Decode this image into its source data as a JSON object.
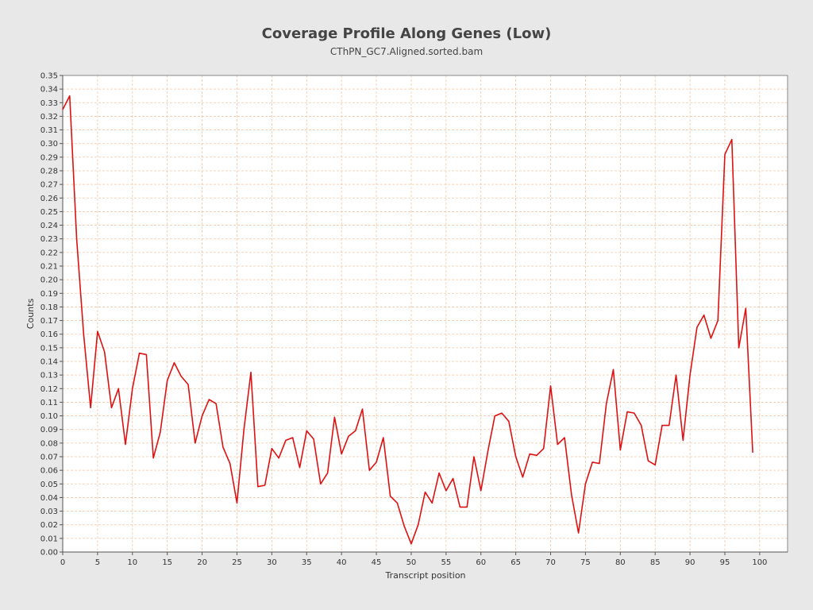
{
  "chart_data": {
    "type": "line",
    "title": "Coverage Profile Along Genes (Low)",
    "subtitle": "CThPN_GC7.Aligned.sorted.bam",
    "xlabel": "Transcript position",
    "ylabel": "Counts",
    "xlim": [
      0,
      104
    ],
    "ylim": [
      0,
      0.35
    ],
    "x_ticks": [
      0,
      5,
      10,
      15,
      20,
      25,
      30,
      35,
      40,
      45,
      50,
      55,
      60,
      65,
      70,
      75,
      80,
      85,
      90,
      95,
      100
    ],
    "y_ticks": [
      "0.00",
      "0.01",
      "0.02",
      "0.03",
      "0.04",
      "0.05",
      "0.06",
      "0.07",
      "0.08",
      "0.09",
      "0.10",
      "0.11",
      "0.12",
      "0.13",
      "0.14",
      "0.15",
      "0.16",
      "0.17",
      "0.18",
      "0.19",
      "0.20",
      "0.21",
      "0.22",
      "0.23",
      "0.24",
      "0.25",
      "0.26",
      "0.27",
      "0.28",
      "0.29",
      "0.30",
      "0.31",
      "0.32",
      "0.33",
      "0.34",
      "0.35"
    ],
    "grid": true,
    "legend": "none",
    "colors": {
      "line": "#dd1111",
      "grid": "#f0c8a8",
      "plot_bg": "#ffffff",
      "page_bg": "#e8e8e8"
    },
    "series": [
      {
        "x": [
          0,
          1,
          2,
          3,
          4,
          5,
          6,
          7,
          8,
          9,
          10,
          11,
          12,
          13,
          14,
          15,
          16,
          17,
          18,
          19,
          20,
          21,
          22,
          23,
          24,
          25,
          26,
          27,
          28,
          29,
          30,
          31,
          32,
          33,
          34,
          35,
          36,
          37,
          38,
          39,
          40,
          41,
          42,
          43,
          44,
          45,
          46,
          47,
          48,
          49,
          50,
          51,
          52,
          53,
          54,
          55,
          56,
          57,
          58,
          59,
          60,
          61,
          62,
          63,
          64,
          65,
          66,
          67,
          68,
          69,
          70,
          71,
          72,
          73,
          74,
          75,
          76,
          77,
          78,
          79,
          80,
          81,
          82,
          83,
          84,
          85,
          86,
          87,
          88,
          89,
          90,
          91,
          92,
          93,
          94,
          95,
          96,
          97,
          98,
          99
        ],
        "values": [
          0.325,
          0.335,
          0.23,
          0.16,
          0.106,
          0.162,
          0.147,
          0.106,
          0.12,
          0.079,
          0.12,
          0.146,
          0.145,
          0.069,
          0.088,
          0.126,
          0.139,
          0.129,
          0.123,
          0.08,
          0.1,
          0.112,
          0.109,
          0.077,
          0.065,
          0.036,
          0.09,
          0.132,
          0.048,
          0.049,
          0.076,
          0.069,
          0.082,
          0.084,
          0.062,
          0.089,
          0.083,
          0.05,
          0.058,
          0.099,
          0.072,
          0.085,
          0.089,
          0.105,
          0.06,
          0.066,
          0.084,
          0.041,
          0.036,
          0.019,
          0.006,
          0.02,
          0.044,
          0.036,
          0.058,
          0.045,
          0.054,
          0.033,
          0.033,
          0.07,
          0.045,
          0.074,
          0.1,
          0.102,
          0.096,
          0.07,
          0.055,
          0.072,
          0.071,
          0.076,
          0.122,
          0.079,
          0.084,
          0.042,
          0.014,
          0.05,
          0.066,
          0.065,
          0.109,
          0.134,
          0.075,
          0.103,
          0.102,
          0.093,
          0.067,
          0.064,
          0.093,
          0.093,
          0.13,
          0.082,
          0.13,
          0.165,
          0.174,
          0.157,
          0.17,
          0.292,
          0.303,
          0.15,
          0.179,
          0.073
        ]
      }
    ]
  }
}
